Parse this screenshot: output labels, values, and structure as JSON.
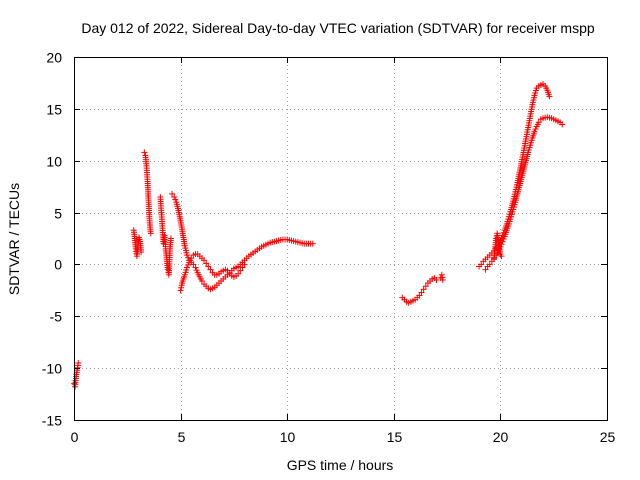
{
  "chart_data": {
    "type": "scatter",
    "title": "Day 012 of 2022, Sidereal Day-to-day VTEC variation (SDTVAR) for receiver mspp",
    "xlabel": "GPS time / hours",
    "ylabel": "SDTVAR / TECUs",
    "xlim": [
      0,
      25
    ],
    "ylim": [
      -15,
      20
    ],
    "xticks": [
      0,
      5,
      10,
      15,
      20,
      25
    ],
    "yticks": [
      -15,
      -10,
      -5,
      0,
      5,
      10,
      15,
      20
    ],
    "grid": true,
    "marker": "+",
    "color": "#ff0000",
    "series": [
      {
        "name": "SDTVAR",
        "segments": [
          [
            [
              0.0,
              -11.5
            ],
            [
              0.05,
              -11.8
            ],
            [
              0.1,
              -10.8
            ],
            [
              0.15,
              -10.2
            ],
            [
              0.2,
              -9.5
            ]
          ],
          [
            [
              2.8,
              3.3
            ],
            [
              2.85,
              2.5
            ],
            [
              2.9,
              1.5
            ],
            [
              2.95,
              0.8
            ],
            [
              3.0,
              1.8
            ],
            [
              3.05,
              2.6
            ],
            [
              3.1,
              2.2
            ],
            [
              3.15,
              1.2
            ]
          ],
          [
            [
              3.3,
              10.8
            ],
            [
              3.35,
              10.5
            ],
            [
              3.4,
              9.5
            ],
            [
              3.45,
              8.0
            ],
            [
              3.5,
              6.0
            ],
            [
              3.55,
              4.0
            ],
            [
              3.6,
              3.0
            ]
          ],
          [
            [
              4.05,
              6.5
            ],
            [
              4.1,
              5.0
            ],
            [
              4.15,
              3.5
            ],
            [
              4.2,
              2.0
            ],
            [
              4.25,
              2.8
            ],
            [
              4.3,
              1.5
            ],
            [
              4.35,
              0.5
            ],
            [
              4.4,
              -0.5
            ],
            [
              4.45,
              -1.0
            ],
            [
              4.5,
              1.5
            ],
            [
              4.55,
              2.5
            ]
          ],
          [
            [
              4.6,
              6.8
            ],
            [
              4.7,
              6.5
            ],
            [
              4.8,
              6.0
            ],
            [
              4.9,
              5.2
            ],
            [
              5.0,
              4.2
            ],
            [
              5.1,
              3.0
            ],
            [
              5.2,
              1.8
            ],
            [
              5.3,
              0.9
            ],
            [
              5.4,
              0.4
            ],
            [
              5.5,
              0.2
            ],
            [
              5.6,
              0.0
            ],
            [
              5.7,
              -0.3
            ],
            [
              5.8,
              -0.8
            ],
            [
              5.9,
              -1.2
            ],
            [
              6.0,
              -1.6
            ],
            [
              6.1,
              -1.9
            ],
            [
              6.2,
              -2.1
            ],
            [
              6.3,
              -2.3
            ],
            [
              6.4,
              -2.4
            ],
            [
              6.5,
              -2.3
            ],
            [
              6.6,
              -2.2
            ],
            [
              6.7,
              -2.0
            ],
            [
              6.8,
              -1.8
            ],
            [
              6.9,
              -1.6
            ],
            [
              7.0,
              -1.4
            ],
            [
              7.1,
              -1.2
            ],
            [
              7.2,
              -1.0
            ],
            [
              7.3,
              -0.8
            ],
            [
              7.4,
              -0.6
            ],
            [
              7.5,
              -0.4
            ],
            [
              7.6,
              -0.3
            ],
            [
              7.7,
              -0.2
            ],
            [
              7.8,
              0.0
            ],
            [
              7.9,
              0.2
            ],
            [
              8.0,
              0.4
            ],
            [
              8.2,
              0.8
            ],
            [
              8.4,
              1.1
            ],
            [
              8.6,
              1.4
            ],
            [
              8.8,
              1.7
            ],
            [
              9.0,
              1.9
            ],
            [
              9.2,
              2.1
            ],
            [
              9.4,
              2.2
            ],
            [
              9.6,
              2.3
            ],
            [
              9.8,
              2.4
            ],
            [
              10.0,
              2.4
            ],
            [
              10.2,
              2.3
            ],
            [
              10.4,
              2.2
            ],
            [
              10.6,
              2.1
            ],
            [
              10.8,
              2.0
            ],
            [
              11.0,
              2.0
            ],
            [
              11.2,
              2.0
            ]
          ],
          [
            [
              5.0,
              -2.5
            ],
            [
              5.05,
              -2.0
            ],
            [
              5.1,
              -1.6
            ],
            [
              5.2,
              -1.0
            ],
            [
              5.3,
              -0.3
            ],
            [
              5.4,
              0.2
            ],
            [
              5.5,
              0.6
            ],
            [
              5.6,
              0.9
            ],
            [
              5.7,
              1.0
            ],
            [
              5.8,
              1.0
            ],
            [
              5.9,
              0.8
            ],
            [
              6.0,
              0.6
            ],
            [
              6.1,
              0.4
            ],
            [
              6.2,
              0.1
            ],
            [
              6.3,
              -0.2
            ],
            [
              6.4,
              -0.5
            ],
            [
              6.5,
              -0.8
            ],
            [
              6.6,
              -1.0
            ],
            [
              6.7,
              -1.0
            ],
            [
              6.8,
              -0.9
            ],
            [
              6.9,
              -0.7
            ],
            [
              7.0,
              -0.6
            ],
            [
              7.1,
              -0.5
            ],
            [
              7.2,
              -0.6
            ],
            [
              7.3,
              -0.9
            ],
            [
              7.4,
              -1.1
            ],
            [
              7.5,
              -1.2
            ],
            [
              7.6,
              -1.1
            ],
            [
              7.7,
              -0.9
            ],
            [
              7.8,
              -0.6
            ],
            [
              7.9,
              -0.3
            ],
            [
              8.0,
              0.0
            ]
          ],
          [
            [
              15.4,
              -3.2
            ],
            [
              15.5,
              -3.4
            ],
            [
              15.6,
              -3.6
            ],
            [
              15.7,
              -3.7
            ],
            [
              15.8,
              -3.6
            ],
            [
              15.9,
              -3.5
            ],
            [
              16.0,
              -3.4
            ],
            [
              16.1,
              -3.2
            ],
            [
              16.2,
              -3.0
            ],
            [
              16.3,
              -2.7
            ],
            [
              16.4,
              -2.4
            ],
            [
              16.5,
              -2.1
            ],
            [
              16.6,
              -1.8
            ],
            [
              16.7,
              -1.6
            ],
            [
              16.8,
              -1.4
            ],
            [
              16.9,
              -1.3
            ],
            [
              17.0,
              -1.5
            ]
          ],
          [
            [
              17.2,
              -1.3
            ],
            [
              17.25,
              -1.0
            ],
            [
              17.3,
              -1.5
            ]
          ],
          [
            [
              19.0,
              -0.2
            ],
            [
              19.1,
              0.0
            ],
            [
              19.2,
              0.3
            ],
            [
              19.3,
              0.5
            ],
            [
              19.4,
              0.7
            ],
            [
              19.5,
              0.9
            ],
            [
              19.6,
              1.1
            ],
            [
              19.7,
              1.3
            ],
            [
              19.8,
              1.6
            ],
            [
              19.9,
              1.9
            ],
            [
              20.0,
              2.3
            ],
            [
              20.1,
              2.8
            ],
            [
              20.2,
              3.3
            ],
            [
              20.3,
              3.9
            ],
            [
              20.4,
              4.6
            ],
            [
              20.5,
              5.3
            ],
            [
              20.6,
              6.1
            ],
            [
              20.7,
              7.0
            ],
            [
              20.8,
              7.9
            ],
            [
              20.9,
              8.9
            ],
            [
              21.0,
              9.9
            ],
            [
              21.1,
              11.0
            ],
            [
              21.2,
              12.1
            ],
            [
              21.3,
              13.2
            ],
            [
              21.4,
              14.3
            ],
            [
              21.5,
              15.4
            ],
            [
              21.6,
              16.3
            ],
            [
              21.7,
              17.0
            ],
            [
              21.8,
              17.2
            ],
            [
              21.9,
              17.3
            ],
            [
              22.0,
              17.4
            ],
            [
              22.1,
              17.2
            ],
            [
              22.2,
              16.8
            ],
            [
              22.3,
              16.2
            ]
          ],
          [
            [
              19.3,
              -0.5
            ],
            [
              19.4,
              -0.2
            ],
            [
              19.5,
              0.0
            ],
            [
              19.6,
              0.3
            ],
            [
              19.7,
              0.6
            ],
            [
              19.8,
              0.9
            ],
            [
              19.9,
              1.3
            ],
            [
              20.0,
              1.7
            ],
            [
              20.1,
              2.2
            ],
            [
              20.2,
              2.7
            ],
            [
              20.3,
              3.3
            ],
            [
              20.4,
              3.9
            ],
            [
              20.5,
              4.6
            ],
            [
              20.6,
              5.3
            ],
            [
              20.7,
              6.0
            ],
            [
              20.8,
              6.8
            ],
            [
              20.9,
              7.6
            ],
            [
              21.0,
              8.4
            ],
            [
              21.1,
              9.2
            ],
            [
              21.2,
              10.0
            ],
            [
              21.3,
              10.8
            ],
            [
              21.4,
              11.5
            ],
            [
              21.5,
              12.2
            ],
            [
              21.6,
              12.8
            ],
            [
              21.7,
              13.3
            ],
            [
              21.8,
              13.7
            ],
            [
              21.9,
              14.0
            ],
            [
              22.0,
              14.1
            ],
            [
              22.2,
              14.2
            ],
            [
              22.4,
              14.1
            ],
            [
              22.6,
              13.9
            ],
            [
              22.8,
              13.7
            ],
            [
              22.9,
              13.5
            ]
          ],
          [
            [
              19.7,
              0.5
            ],
            [
              19.75,
              1.5
            ],
            [
              19.8,
              2.5
            ],
            [
              19.85,
              3.0
            ],
            [
              19.9,
              2.0
            ],
            [
              20.0,
              1.0
            ],
            [
              20.05,
              0.8
            ]
          ]
        ]
      }
    ]
  }
}
